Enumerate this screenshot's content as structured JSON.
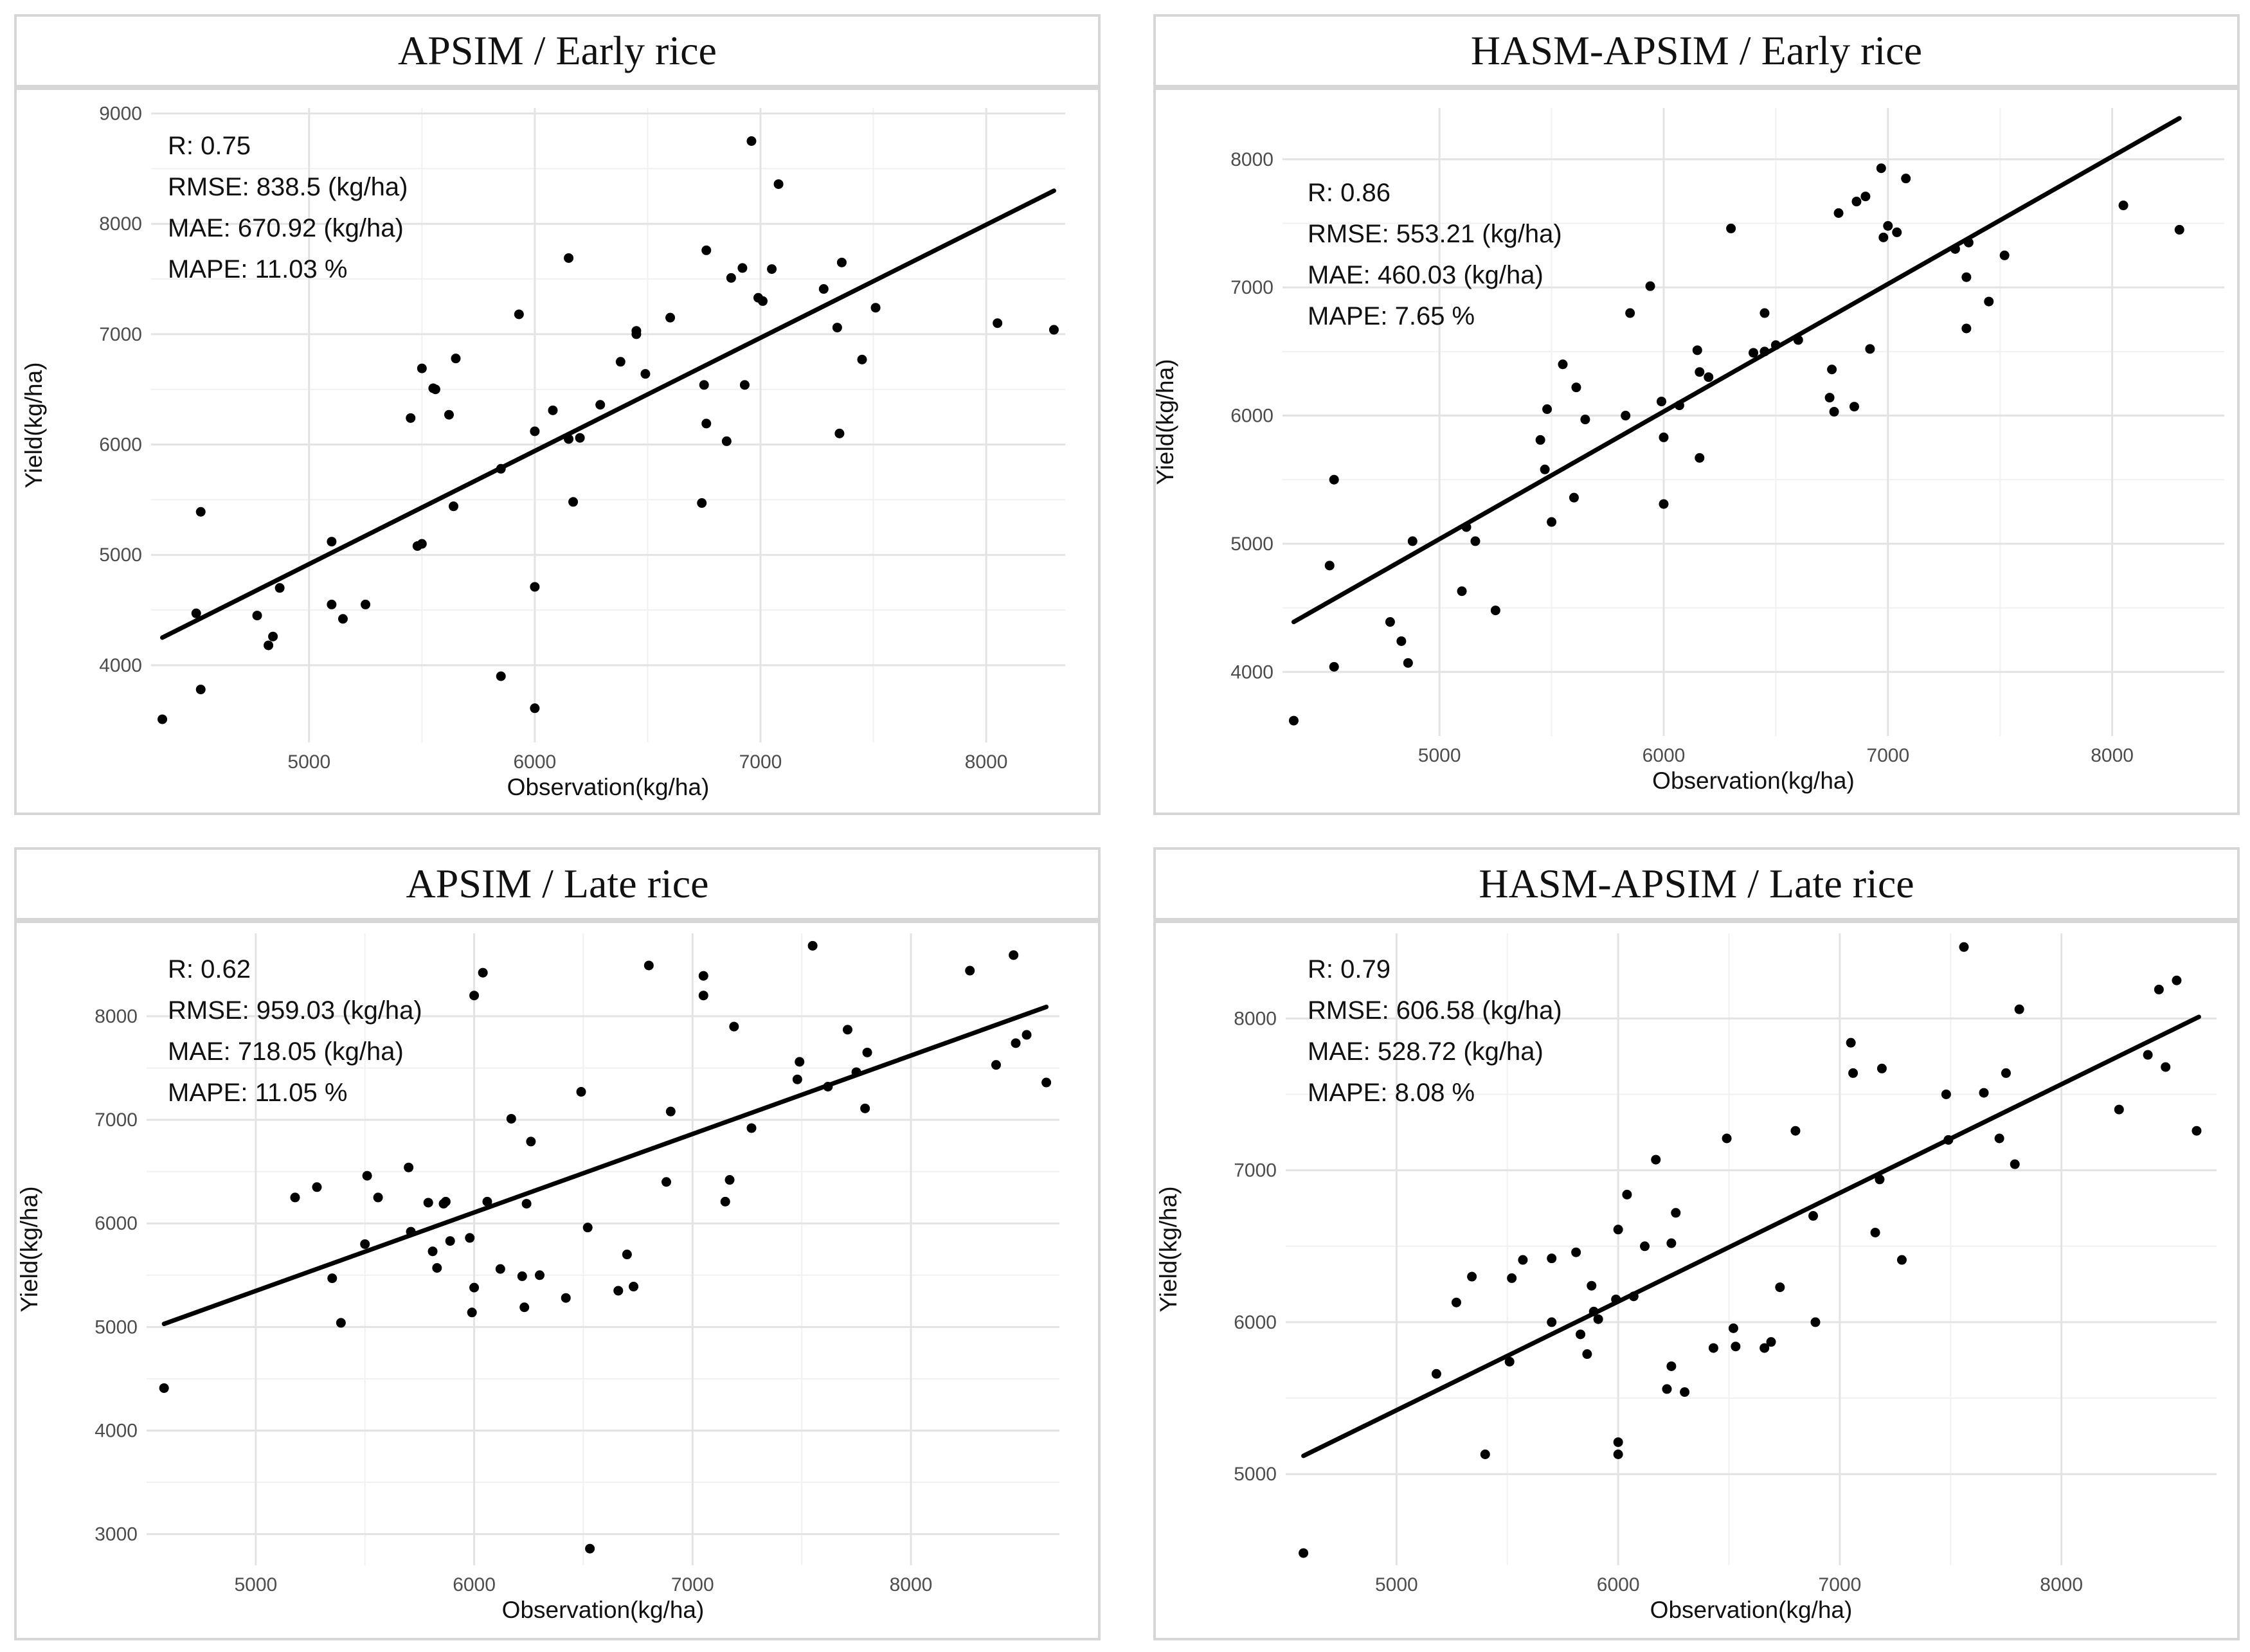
{
  "chart_data": [
    {
      "type": "scatter",
      "title": "APSIM / Early rice",
      "xlabel": "Observation(kg/ha)",
      "ylabel": "Yield(kg/ha)",
      "xlim": [
        4300,
        8350
      ],
      "ylim": [
        3300,
        9050
      ],
      "xticks": [
        5000,
        6000,
        7000,
        8000
      ],
      "xtick_labels": [
        "5000",
        "6000",
        "7000",
        "8000"
      ],
      "yticks": [
        4000,
        5000,
        6000,
        7000,
        8000,
        9000
      ],
      "ytick_labels": [
        "4000",
        "5000",
        "6000",
        "7000",
        "8000",
        "9000"
      ],
      "stats": [
        "R: 0.75",
        "RMSE: 838.5 (kg/ha)",
        "MAE: 670.92 (kg/ha)",
        "MAPE: 11.03 %"
      ],
      "fit_line": [
        [
          4350,
          4250
        ],
        [
          8300,
          8300
        ]
      ],
      "points": [
        [
          4350,
          3510
        ],
        [
          4500,
          4470
        ],
        [
          4520,
          5390
        ],
        [
          4520,
          3780
        ],
        [
          4770,
          4450
        ],
        [
          4820,
          4180
        ],
        [
          4840,
          4260
        ],
        [
          4870,
          4700
        ],
        [
          5100,
          5120
        ],
        [
          5100,
          4550
        ],
        [
          5150,
          4420
        ],
        [
          5250,
          4550
        ],
        [
          5450,
          6240
        ],
        [
          5480,
          5080
        ],
        [
          5500,
          6690
        ],
        [
          5500,
          5100
        ],
        [
          5550,
          6510
        ],
        [
          5560,
          6500
        ],
        [
          5620,
          6270
        ],
        [
          5640,
          5440
        ],
        [
          5650,
          6780
        ],
        [
          5850,
          5780
        ],
        [
          5850,
          3900
        ],
        [
          5930,
          7180
        ],
        [
          6000,
          6120
        ],
        [
          6000,
          4710
        ],
        [
          6000,
          3610
        ],
        [
          6080,
          6310
        ],
        [
          6150,
          7690
        ],
        [
          6150,
          6050
        ],
        [
          6170,
          5480
        ],
        [
          6200,
          6060
        ],
        [
          6290,
          6360
        ],
        [
          6380,
          6750
        ],
        [
          6450,
          7030
        ],
        [
          6450,
          7000
        ],
        [
          6490,
          6640
        ],
        [
          6600,
          7150
        ],
        [
          6740,
          5470
        ],
        [
          6750,
          6540
        ],
        [
          6760,
          6190
        ],
        [
          6760,
          7760
        ],
        [
          6850,
          6030
        ],
        [
          6870,
          7510
        ],
        [
          6920,
          7600
        ],
        [
          6930,
          6540
        ],
        [
          6960,
          8750
        ],
        [
          6990,
          7330
        ],
        [
          7010,
          7300
        ],
        [
          7050,
          7590
        ],
        [
          7080,
          8360
        ],
        [
          7280,
          7410
        ],
        [
          7340,
          7060
        ],
        [
          7350,
          6100
        ],
        [
          7360,
          7650
        ],
        [
          7450,
          6770
        ],
        [
          7510,
          7240
        ],
        [
          8050,
          7100
        ],
        [
          8300,
          7040
        ]
      ]
    },
    {
      "type": "scatter",
      "title": "HASM-APSIM / Early rice",
      "xlabel": "Observation(kg/ha)",
      "ylabel": "Yield(kg/ha)",
      "xlim": [
        4300,
        8500
      ],
      "ylim": [
        3500,
        8400
      ],
      "xticks": [
        5000,
        6000,
        7000,
        8000
      ],
      "xtick_labels": [
        "5000",
        "6000",
        "7000",
        "8000"
      ],
      "yticks": [
        4000,
        5000,
        6000,
        7000,
        8000
      ],
      "ytick_labels": [
        "4000",
        "5000",
        "6000",
        "7000",
        "8000"
      ],
      "stats": [
        "R: 0.86",
        "RMSE: 553.21 (kg/ha)",
        "MAE: 460.03 (kg/ha)",
        "MAPE: 7.65 %"
      ],
      "fit_line": [
        [
          4350,
          4390
        ],
        [
          8300,
          8320
        ]
      ],
      "points": [
        [
          4350,
          3620
        ],
        [
          4510,
          4830
        ],
        [
          4530,
          5500
        ],
        [
          4530,
          4040
        ],
        [
          4780,
          4390
        ],
        [
          4830,
          4240
        ],
        [
          4860,
          4070
        ],
        [
          4880,
          5020
        ],
        [
          5100,
          4630
        ],
        [
          5120,
          5130
        ],
        [
          5160,
          5020
        ],
        [
          5250,
          4480
        ],
        [
          5450,
          5810
        ],
        [
          5470,
          5580
        ],
        [
          5480,
          6050
        ],
        [
          5500,
          5170
        ],
        [
          5550,
          6400
        ],
        [
          5600,
          5360
        ],
        [
          5610,
          6220
        ],
        [
          5650,
          5970
        ],
        [
          5830,
          6000
        ],
        [
          5850,
          6800
        ],
        [
          5940,
          7010
        ],
        [
          5990,
          6110
        ],
        [
          6000,
          5830
        ],
        [
          6000,
          5310
        ],
        [
          6070,
          6080
        ],
        [
          6150,
          6510
        ],
        [
          6160,
          5670
        ],
        [
          6160,
          6340
        ],
        [
          6200,
          6300
        ],
        [
          6300,
          7460
        ],
        [
          6400,
          6490
        ],
        [
          6450,
          6800
        ],
        [
          6450,
          6500
        ],
        [
          6500,
          6550
        ],
        [
          6600,
          6590
        ],
        [
          6740,
          6140
        ],
        [
          6750,
          6360
        ],
        [
          6760,
          6030
        ],
        [
          6780,
          7580
        ],
        [
          6850,
          6070
        ],
        [
          6860,
          7670
        ],
        [
          6900,
          7710
        ],
        [
          6920,
          6520
        ],
        [
          6970,
          7930
        ],
        [
          6980,
          7390
        ],
        [
          7000,
          7480
        ],
        [
          7040,
          7430
        ],
        [
          7080,
          7850
        ],
        [
          7300,
          7300
        ],
        [
          7350,
          7080
        ],
        [
          7350,
          6680
        ],
        [
          7360,
          7350
        ],
        [
          7450,
          6890
        ],
        [
          7520,
          7250
        ],
        [
          8050,
          7640
        ],
        [
          8300,
          7450
        ]
      ]
    },
    {
      "type": "scatter",
      "title": "APSIM / Late rice",
      "xlabel": "Observation(kg/ha)",
      "ylabel": "Yield(kg/ha)",
      "xlim": [
        4500,
        8680
      ],
      "ylim": [
        2700,
        8800
      ],
      "xticks": [
        5000,
        6000,
        7000,
        8000
      ],
      "xtick_labels": [
        "5000",
        "6000",
        "7000",
        "8000"
      ],
      "yticks": [
        3000,
        4000,
        5000,
        6000,
        7000,
        8000
      ],
      "ytick_labels": [
        "3000",
        "4000",
        "5000",
        "6000",
        "7000",
        "8000"
      ],
      "stats": [
        "R: 0.62",
        "RMSE: 959.03 (kg/ha)",
        "MAE: 718.05 (kg/ha)",
        "MAPE: 11.05 %"
      ],
      "fit_line": [
        [
          4580,
          5030
        ],
        [
          8620,
          8090
        ]
      ],
      "points": [
        [
          4580,
          4410
        ],
        [
          5180,
          6250
        ],
        [
          5280,
          6350
        ],
        [
          5350,
          5470
        ],
        [
          5390,
          5040
        ],
        [
          5500,
          5800
        ],
        [
          5510,
          6460
        ],
        [
          5560,
          6250
        ],
        [
          5700,
          6540
        ],
        [
          5710,
          5920
        ],
        [
          5790,
          6200
        ],
        [
          5810,
          5730
        ],
        [
          5830,
          5570
        ],
        [
          5860,
          6190
        ],
        [
          5870,
          6210
        ],
        [
          5890,
          5830
        ],
        [
          5980,
          5860
        ],
        [
          5990,
          5140
        ],
        [
          6000,
          5380
        ],
        [
          6000,
          8200
        ],
        [
          6040,
          8420
        ],
        [
          6060,
          6210
        ],
        [
          6120,
          5560
        ],
        [
          6170,
          7010
        ],
        [
          6220,
          5490
        ],
        [
          6230,
          5190
        ],
        [
          6240,
          6190
        ],
        [
          6260,
          6790
        ],
        [
          6300,
          5500
        ],
        [
          6420,
          5280
        ],
        [
          6490,
          7270
        ],
        [
          6520,
          5960
        ],
        [
          6530,
          2860
        ],
        [
          6660,
          5350
        ],
        [
          6700,
          5700
        ],
        [
          6730,
          5390
        ],
        [
          6800,
          8490
        ],
        [
          6880,
          6400
        ],
        [
          6900,
          7080
        ],
        [
          7050,
          8390
        ],
        [
          7050,
          8200
        ],
        [
          7150,
          6210
        ],
        [
          7170,
          6420
        ],
        [
          7190,
          7900
        ],
        [
          7270,
          6920
        ],
        [
          7480,
          7390
        ],
        [
          7490,
          7560
        ],
        [
          7550,
          8680
        ],
        [
          7620,
          7320
        ],
        [
          7710,
          7870
        ],
        [
          7750,
          7460
        ],
        [
          7790,
          7110
        ],
        [
          7800,
          7650
        ],
        [
          8270,
          8440
        ],
        [
          8390,
          7530
        ],
        [
          8470,
          8590
        ],
        [
          8480,
          7740
        ],
        [
          8530,
          7820
        ],
        [
          8620,
          7360
        ]
      ]
    },
    {
      "type": "scatter",
      "title": "HASM-APSIM / Late rice",
      "xlabel": "Observation(kg/ha)",
      "ylabel": "Yield(kg/ha)",
      "xlim": [
        4500,
        8700
      ],
      "ylim": [
        4400,
        8560
      ],
      "xticks": [
        5000,
        6000,
        7000,
        8000
      ],
      "xtick_labels": [
        "5000",
        "6000",
        "7000",
        "8000"
      ],
      "yticks": [
        5000,
        6000,
        7000,
        8000
      ],
      "ytick_labels": [
        "5000",
        "6000",
        "7000",
        "8000"
      ],
      "stats": [
        "R: 0.79",
        "RMSE: 606.58 (kg/ha)",
        "MAE: 528.72 (kg/ha)",
        "MAPE: 8.08 %"
      ],
      "fit_line": [
        [
          4580,
          5120
        ],
        [
          8620,
          8010
        ]
      ],
      "points": [
        [
          4580,
          4480
        ],
        [
          5180,
          5660
        ],
        [
          5270,
          6130
        ],
        [
          5340,
          6300
        ],
        [
          5400,
          5130
        ],
        [
          5510,
          5740
        ],
        [
          5520,
          6290
        ],
        [
          5570,
          6410
        ],
        [
          5700,
          6420
        ],
        [
          5700,
          6000
        ],
        [
          5810,
          6460
        ],
        [
          5830,
          5920
        ],
        [
          5860,
          5790
        ],
        [
          5880,
          6240
        ],
        [
          5890,
          6070
        ],
        [
          5910,
          6020
        ],
        [
          5990,
          6150
        ],
        [
          6000,
          6610
        ],
        [
          6000,
          5210
        ],
        [
          6000,
          5130
        ],
        [
          6040,
          6840
        ],
        [
          6070,
          6170
        ],
        [
          6120,
          6500
        ],
        [
          6170,
          7070
        ],
        [
          6220,
          5560
        ],
        [
          6240,
          5710
        ],
        [
          6240,
          6520
        ],
        [
          6260,
          6720
        ],
        [
          6300,
          5540
        ],
        [
          6430,
          5830
        ],
        [
          6490,
          7210
        ],
        [
          6520,
          5960
        ],
        [
          6530,
          5840
        ],
        [
          6660,
          5830
        ],
        [
          6690,
          5870
        ],
        [
          6730,
          6230
        ],
        [
          6800,
          7260
        ],
        [
          6880,
          6700
        ],
        [
          6890,
          6000
        ],
        [
          7050,
          7840
        ],
        [
          7060,
          7640
        ],
        [
          7160,
          6590
        ],
        [
          7180,
          6940
        ],
        [
          7190,
          7670
        ],
        [
          7280,
          6410
        ],
        [
          7480,
          7500
        ],
        [
          7490,
          7200
        ],
        [
          7560,
          8470
        ],
        [
          7650,
          7510
        ],
        [
          7720,
          7210
        ],
        [
          7750,
          7640
        ],
        [
          7790,
          7040
        ],
        [
          7810,
          8060
        ],
        [
          8260,
          7400
        ],
        [
          8390,
          7760
        ],
        [
          8440,
          8190
        ],
        [
          8470,
          7680
        ],
        [
          8520,
          8250
        ],
        [
          8610,
          7260
        ]
      ]
    }
  ]
}
